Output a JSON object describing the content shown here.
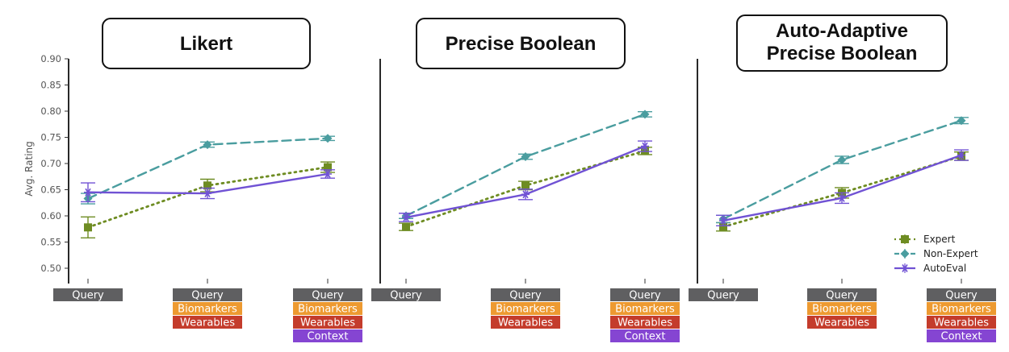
{
  "chart_data": [
    {
      "type": "line",
      "title": "Likert",
      "ylabel": "Avg. Rating",
      "ylim": [
        0.48,
        0.9
      ],
      "yticks": [
        "0.50",
        "0.55",
        "0.60",
        "0.65",
        "0.70",
        "0.75",
        "0.80",
        "0.85",
        "0.90"
      ],
      "categories": [
        [
          "Query"
        ],
        [
          "Query",
          "Biomarkers",
          "Wearables"
        ],
        [
          "Query",
          "Biomarkers",
          "Wearables",
          "Context"
        ]
      ],
      "series": [
        {
          "name": "Expert",
          "values": [
            0.578,
            0.658,
            0.693
          ],
          "errors": [
            0.02,
            0.012,
            0.01
          ]
        },
        {
          "name": "Non-Expert",
          "values": [
            0.633,
            0.736,
            0.748
          ],
          "errors": [
            0.01,
            0.005,
            0.004
          ]
        },
        {
          "name": "AutoEval",
          "values": [
            0.645,
            0.643,
            0.68
          ],
          "errors": [
            0.018,
            0.01,
            0.008
          ]
        }
      ]
    },
    {
      "type": "line",
      "title": "Precise Boolean",
      "ylim": [
        0.48,
        0.9
      ],
      "categories": [
        [
          "Query"
        ],
        [
          "Query",
          "Biomarkers",
          "Wearables"
        ],
        [
          "Query",
          "Biomarkers",
          "Wearables",
          "Context"
        ]
      ],
      "series": [
        {
          "name": "Expert",
          "values": [
            0.579,
            0.658,
            0.724
          ],
          "errors": [
            0.007,
            0.008,
            0.007
          ]
        },
        {
          "name": "Non-Expert",
          "values": [
            0.6,
            0.713,
            0.794
          ],
          "errors": [
            0.005,
            0.005,
            0.005
          ]
        },
        {
          "name": "AutoEval",
          "values": [
            0.597,
            0.641,
            0.733
          ],
          "errors": [
            0.008,
            0.01,
            0.01
          ]
        }
      ]
    },
    {
      "type": "line",
      "title": "Auto-Adaptive Precise Boolean",
      "title_lines": [
        "Auto-Adaptive",
        "Precise Boolean"
      ],
      "ylim": [
        0.48,
        0.9
      ],
      "categories": [
        [
          "Query"
        ],
        [
          "Query",
          "Biomarkers",
          "Wearables"
        ],
        [
          "Query",
          "Biomarkers",
          "Wearables",
          "Context"
        ]
      ],
      "series": [
        {
          "name": "Expert",
          "values": [
            0.579,
            0.644,
            0.714
          ],
          "errors": [
            0.008,
            0.01,
            0.008
          ]
        },
        {
          "name": "Non-Expert",
          "values": [
            0.594,
            0.707,
            0.782
          ],
          "errors": [
            0.007,
            0.007,
            0.006
          ]
        },
        {
          "name": "AutoEval",
          "values": [
            0.591,
            0.634,
            0.716
          ],
          "errors": [
            0.01,
            0.01,
            0.01
          ]
        }
      ]
    }
  ],
  "legend": {
    "position": "bottom-right of third panel",
    "items": [
      "Expert",
      "Non-Expert",
      "AutoEval"
    ]
  },
  "colors": {
    "expert": "#6e8c22",
    "non_expert": "#4a9d9f",
    "autoeval": "#7052d4",
    "query_tag": "#5f5f61",
    "biomarkers_tag": "#ed9a31",
    "wearables_tag": "#c43c2c",
    "context_tag": "#8545d2"
  }
}
